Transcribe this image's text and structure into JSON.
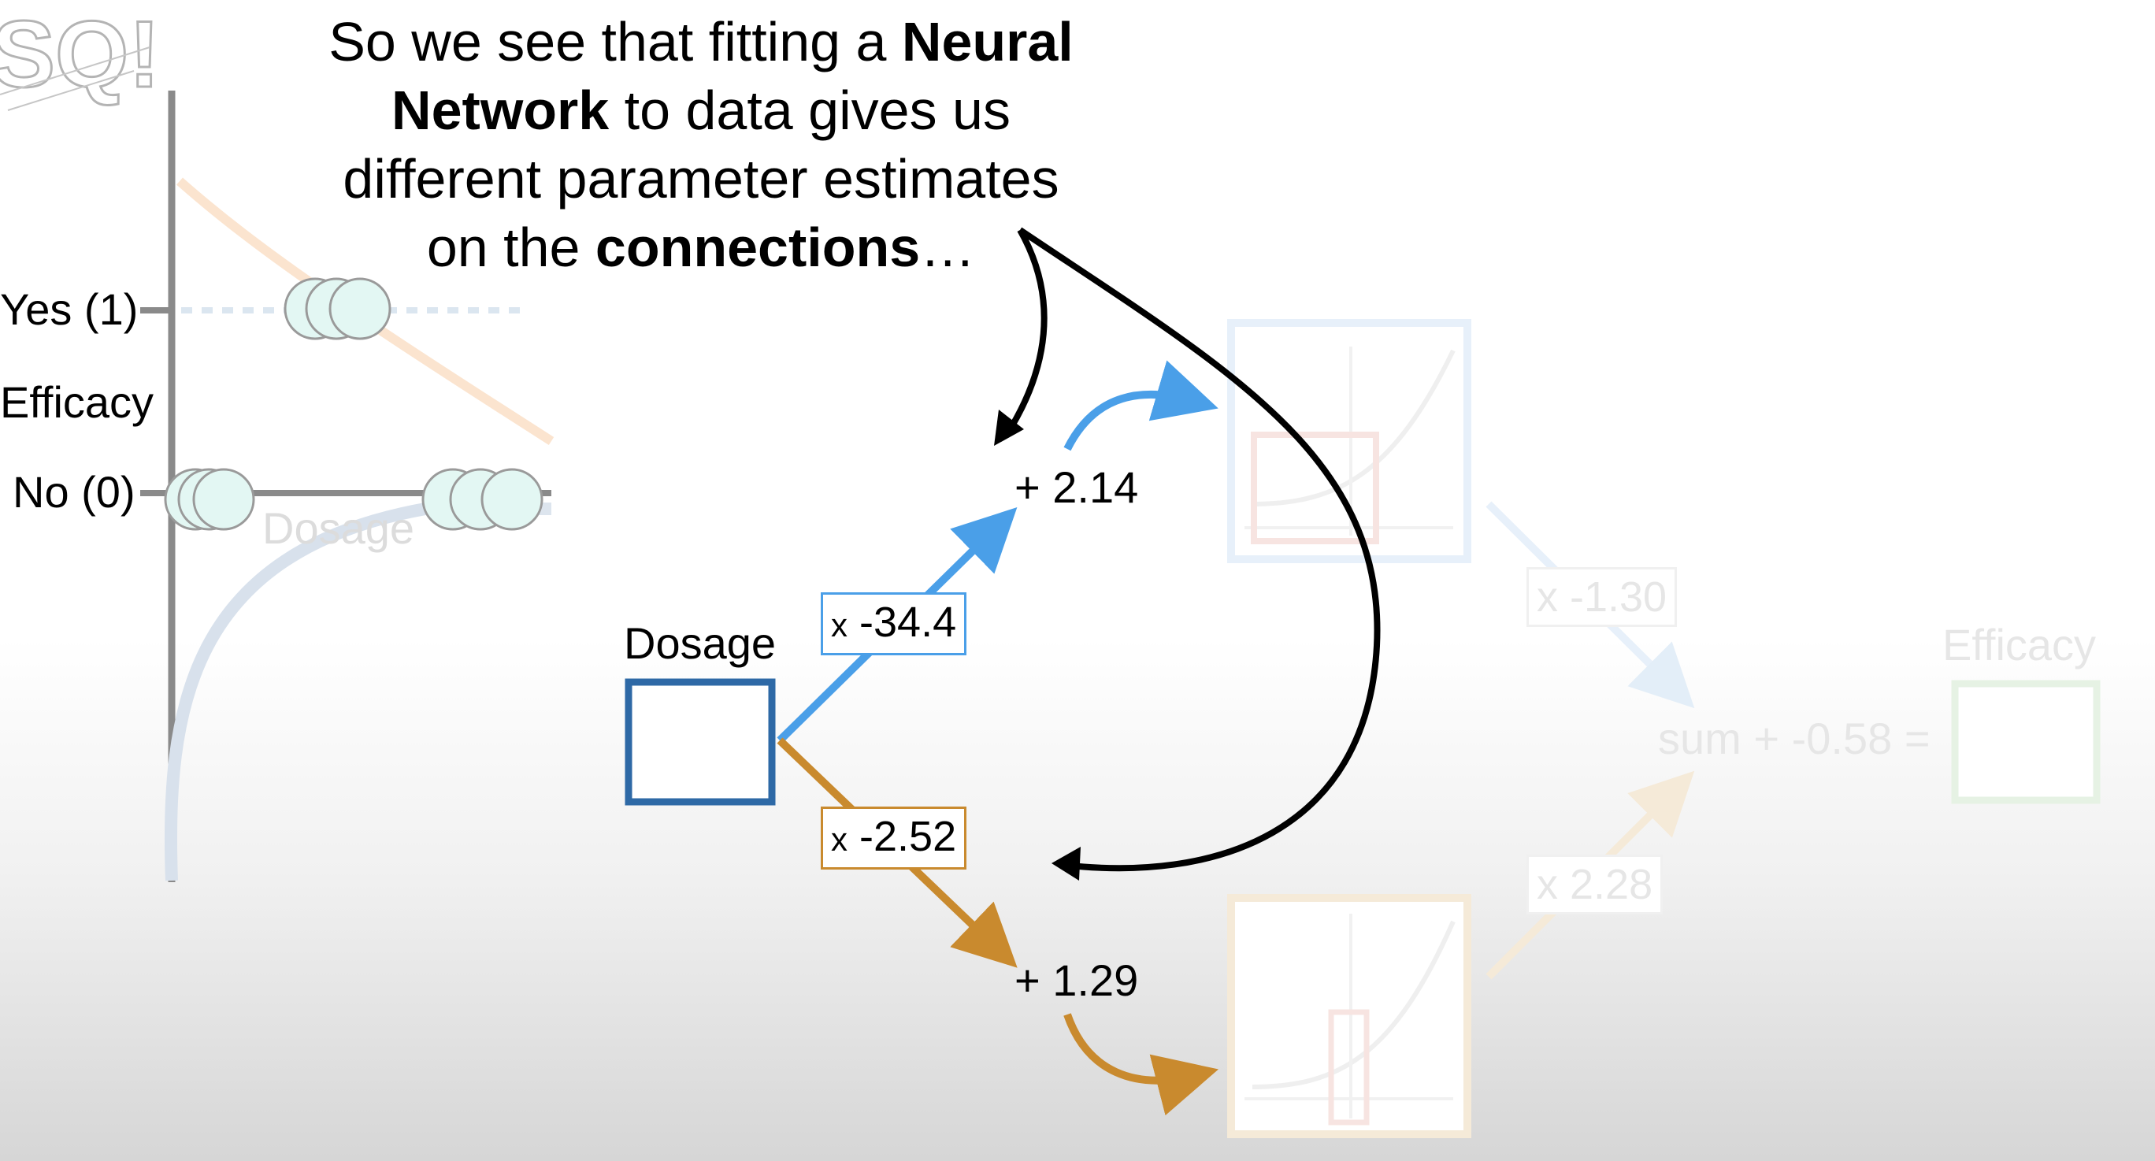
{
  "caption": {
    "part1": "So we see that fitting a ",
    "bold1": "Neural",
    "bold2": "Network",
    "part2": " to data gives us",
    "line3": "different parameter estimates",
    "part3": "on the ",
    "bold3": "connections",
    "part4": "…"
  },
  "graph": {
    "yes_label": "Yes (1)",
    "efficacy_label": "Efficacy",
    "no_label": "No (0)",
    "dosage_axis_label": "Dosage"
  },
  "network": {
    "input_label": "Dosage",
    "weight_top": "-34.4",
    "weight_bottom": "-2.52",
    "weight_prefix": "x",
    "bias_top": "+ 2.14",
    "bias_bottom": "+ 1.29",
    "weight_out_top": "x -1.30",
    "weight_out_bottom": "x 2.28",
    "sum_text": "sum + -0.58 =",
    "output_label": "Efficacy"
  },
  "colors": {
    "blue": "#4a9fe8",
    "orange": "#c98a2e",
    "input_box": "#2e69a6",
    "arrow_black": "#000000"
  }
}
